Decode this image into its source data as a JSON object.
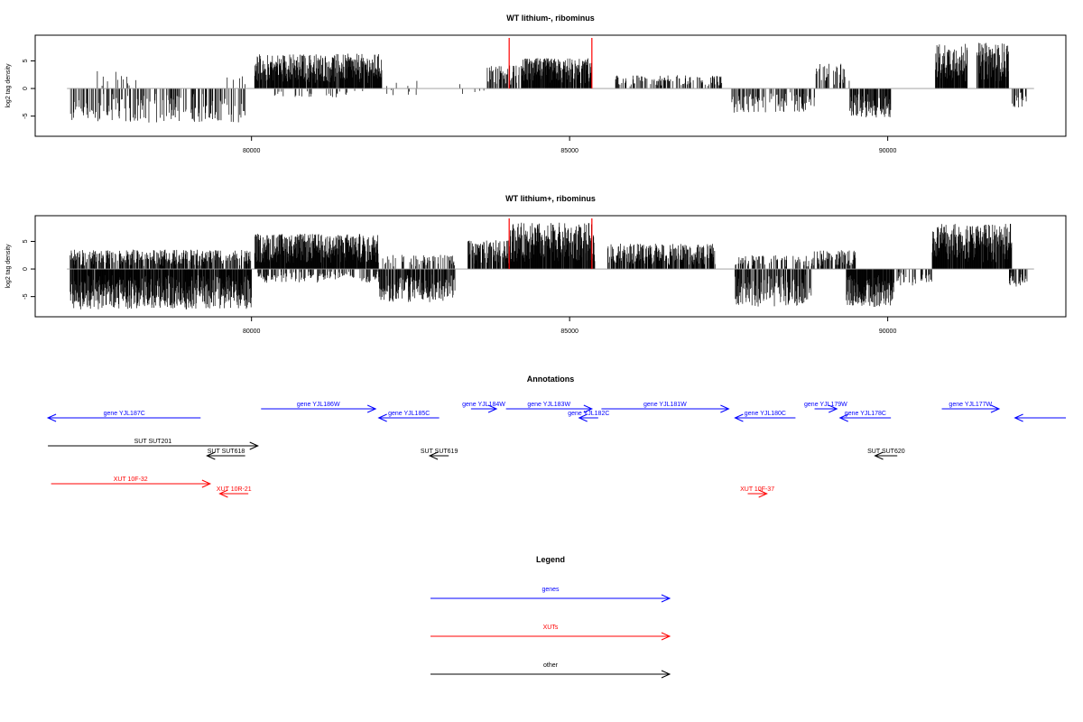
{
  "chart_data": [
    {
      "type": "bar",
      "title": "WT lithium-, ribominus",
      "ylabel": "log2 tag density",
      "xlim": [
        76600,
        92800
      ],
      "ylim": [
        -8,
        9
      ],
      "x_ticks": [
        80000,
        85000,
        90000
      ],
      "x_tick_labels": [
        "80000",
        "85000",
        "90000"
      ],
      "y_ticks": [
        -5,
        0,
        5
      ],
      "y_tick_labels": [
        "-5",
        "0",
        "5"
      ],
      "highlight_x": [
        84050,
        85350
      ],
      "highlight_color": "#ff0000",
      "bar_color": "#000000",
      "grid": false,
      "segments": [
        {
          "start": 77150,
          "end": 79900,
          "sign": -1,
          "max": 6.2,
          "density": 0.35
        },
        {
          "start": 77350,
          "end": 78200,
          "sign": 1,
          "max": 3.2,
          "density": 0.05
        },
        {
          "start": 79550,
          "end": 79900,
          "sign": 1,
          "max": 2.6,
          "density": 0.1
        },
        {
          "start": 80050,
          "end": 82050,
          "sign": 1,
          "max": 6.3,
          "density": 0.9
        },
        {
          "start": 80300,
          "end": 81900,
          "sign": -1,
          "max": 1.6,
          "density": 0.08
        },
        {
          "start": 82100,
          "end": 82650,
          "sign": -1,
          "max": 1.5,
          "density": 0.05
        },
        {
          "start": 82100,
          "end": 82650,
          "sign": 1,
          "max": 1.4,
          "density": 0.04
        },
        {
          "start": 83150,
          "end": 83300,
          "sign": 1,
          "max": 3.5,
          "density": 0.05
        },
        {
          "start": 83300,
          "end": 83700,
          "sign": -1,
          "max": 1.6,
          "density": 0.05
        },
        {
          "start": 83700,
          "end": 84250,
          "sign": 1,
          "max": 4.2,
          "density": 0.5
        },
        {
          "start": 84250,
          "end": 85350,
          "sign": 1,
          "max": 5.5,
          "density": 0.9
        },
        {
          "start": 85700,
          "end": 87400,
          "sign": 1,
          "max": 2.4,
          "density": 0.35
        },
        {
          "start": 87550,
          "end": 88850,
          "sign": -1,
          "max": 4.4,
          "density": 0.35
        },
        {
          "start": 88850,
          "end": 89400,
          "sign": 1,
          "max": 4.5,
          "density": 0.3
        },
        {
          "start": 89400,
          "end": 90050,
          "sign": -1,
          "max": 5.3,
          "density": 0.7
        },
        {
          "start": 90750,
          "end": 91250,
          "sign": 1,
          "max": 8.1,
          "density": 0.9
        },
        {
          "start": 91400,
          "end": 91900,
          "sign": 1,
          "max": 8.3,
          "density": 0.9
        },
        {
          "start": 91950,
          "end": 92200,
          "sign": -1,
          "max": 3.5,
          "density": 0.3
        }
      ]
    },
    {
      "type": "bar",
      "title": "WT lithium+, ribominus",
      "ylabel": "log2 tag density",
      "xlim": [
        76600,
        92800
      ],
      "ylim": [
        -8,
        9
      ],
      "x_ticks": [
        80000,
        85000,
        90000
      ],
      "x_tick_labels": [
        "80000",
        "85000",
        "90000"
      ],
      "y_ticks": [
        -5,
        0,
        5
      ],
      "y_tick_labels": [
        "-5",
        "0",
        "5"
      ],
      "highlight_x": [
        84050,
        85350
      ],
      "highlight_color": "#ff0000",
      "bar_color": "#000000",
      "grid": false,
      "segments": [
        {
          "start": 77150,
          "end": 80000,
          "sign": -1,
          "max": 7.3,
          "density": 0.9
        },
        {
          "start": 77150,
          "end": 80000,
          "sign": 1,
          "max": 3.5,
          "density": 0.6
        },
        {
          "start": 80050,
          "end": 82000,
          "sign": 1,
          "max": 6.4,
          "density": 0.95
        },
        {
          "start": 80100,
          "end": 82000,
          "sign": -1,
          "max": 2.5,
          "density": 0.3
        },
        {
          "start": 82000,
          "end": 83200,
          "sign": -1,
          "max": 6.0,
          "density": 0.7
        },
        {
          "start": 82000,
          "end": 83200,
          "sign": 1,
          "max": 2.6,
          "density": 0.3
        },
        {
          "start": 83400,
          "end": 84050,
          "sign": 1,
          "max": 5.2,
          "density": 0.7
        },
        {
          "start": 84050,
          "end": 85400,
          "sign": 1,
          "max": 8.4,
          "density": 0.95
        },
        {
          "start": 85600,
          "end": 87300,
          "sign": 1,
          "max": 4.6,
          "density": 0.7
        },
        {
          "start": 87600,
          "end": 88800,
          "sign": -1,
          "max": 6.8,
          "density": 0.6
        },
        {
          "start": 87600,
          "end": 88800,
          "sign": 1,
          "max": 2.5,
          "density": 0.3
        },
        {
          "start": 88800,
          "end": 89500,
          "sign": 1,
          "max": 3.4,
          "density": 0.5
        },
        {
          "start": 89350,
          "end": 90100,
          "sign": -1,
          "max": 6.9,
          "density": 0.9
        },
        {
          "start": 90100,
          "end": 90700,
          "sign": -1,
          "max": 3.0,
          "density": 0.25
        },
        {
          "start": 90700,
          "end": 91950,
          "sign": 1,
          "max": 8.2,
          "density": 0.95
        },
        {
          "start": 91900,
          "end": 92200,
          "sign": -1,
          "max": 3.2,
          "density": 0.5
        }
      ]
    }
  ],
  "annotations": {
    "title": "Annotations",
    "xlim": [
      76600,
      92800
    ],
    "features": [
      {
        "label": "gene YJL187C",
        "start": 79200,
        "end": 76800,
        "row": 0,
        "color": "#0000ff"
      },
      {
        "label": "gene YJL186W",
        "start": 80150,
        "end": 81950,
        "row": -1,
        "color": "#0000ff"
      },
      {
        "label": "gene YJL185C",
        "start": 82950,
        "end": 82000,
        "row": 0,
        "color": "#0000ff"
      },
      {
        "label": "gene YJL184W",
        "start": 83450,
        "end": 83850,
        "row": -1,
        "color": "#0000ff"
      },
      {
        "label": "gene YJL183W",
        "start": 84000,
        "end": 85350,
        "row": -1,
        "color": "#0000ff"
      },
      {
        "label": "gene YJL182C",
        "start": 85450,
        "end": 85150,
        "row": 0,
        "color": "#0000ff"
      },
      {
        "label": "gene YJL181W",
        "start": 85500,
        "end": 87500,
        "row": -1,
        "color": "#0000ff"
      },
      {
        "label": "gene YJL180C",
        "start": 88550,
        "end": 87600,
        "row": 0,
        "color": "#0000ff"
      },
      {
        "label": "gene YJL179W",
        "start": 88850,
        "end": 89200,
        "row": -1,
        "color": "#0000ff"
      },
      {
        "label": "gene YJL178C",
        "start": 90050,
        "end": 89250,
        "row": 0,
        "color": "#0000ff"
      },
      {
        "label": "gene YJL177W",
        "start": 90850,
        "end": 91750,
        "row": -1,
        "color": "#0000ff"
      },
      {
        "label": "",
        "start": 92800,
        "end": 92000,
        "row": 0,
        "color": "#0000ff"
      },
      {
        "label": "SUT SUT201",
        "start": 76800,
        "end": 80100,
        "row": 1,
        "color": "#000000"
      },
      {
        "label": "SUT SUT618",
        "start": 79900,
        "end": 79300,
        "row": 2,
        "color": "#000000"
      },
      {
        "label": "SUT SUT619",
        "start": 83100,
        "end": 82800,
        "row": 2,
        "color": "#000000"
      },
      {
        "label": "SUT SUT620",
        "start": 90150,
        "end": 89800,
        "row": 2,
        "color": "#000000"
      },
      {
        "label": "XUT 10F-32",
        "start": 76850,
        "end": 79350,
        "row": 3,
        "color": "#ff0000"
      },
      {
        "label": "XUT 10R-21",
        "start": 79950,
        "end": 79500,
        "row": 4,
        "color": "#ff0000"
      },
      {
        "label": "XUT 10F-37",
        "start": 87800,
        "end": 88100,
        "row": 4,
        "color": "#ff0000"
      }
    ]
  },
  "legend": {
    "title": "Legend",
    "items": [
      {
        "label": "genes",
        "color": "#0000ff"
      },
      {
        "label": "XUTs",
        "color": "#ff0000"
      },
      {
        "label": "other",
        "color": "#000000"
      }
    ]
  }
}
